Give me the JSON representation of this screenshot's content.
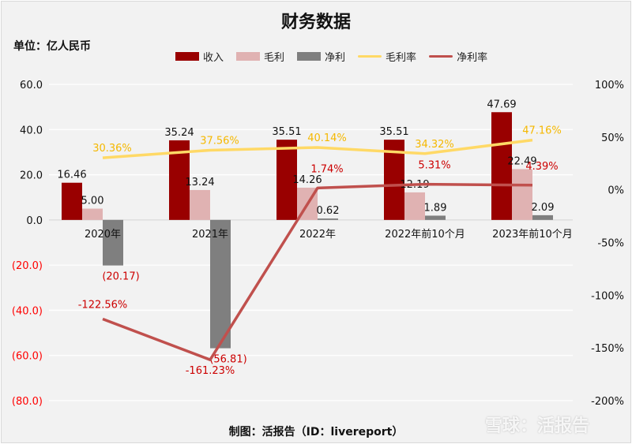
{
  "chart_data": {
    "type": "bar+line",
    "title": "财务数据",
    "unit_label": "单位：亿人民币",
    "categories": [
      "2020年",
      "2021年",
      "2022年",
      "2022年前10个月",
      "2023年前10个月"
    ],
    "bar_series": [
      {
        "name": "收入",
        "color": "#990000",
        "values": [
          16.46,
          35.24,
          35.51,
          35.51,
          47.69
        ],
        "labels": [
          "16.46",
          "35.24",
          "35.51",
          "35.51",
          "47.69"
        ]
      },
      {
        "name": "毛利",
        "color": "#e0b2b2",
        "values": [
          5.0,
          13.24,
          14.26,
          12.19,
          22.49
        ],
        "labels": [
          "5.00",
          "13.24",
          "14.26",
          "12.19",
          "22.49"
        ]
      },
      {
        "name": "净利",
        "color": "#7f7f7f",
        "values": [
          -20.17,
          -56.81,
          0.62,
          1.89,
          2.09
        ],
        "labels": [
          "(20.17)",
          "(56.81)",
          "0.62",
          "1.89",
          "2.09"
        ]
      }
    ],
    "line_series": [
      {
        "name": "毛利率",
        "color": "#ffd966",
        "label_color": "#f5b800",
        "values": [
          30.36,
          37.56,
          40.14,
          34.32,
          47.16
        ],
        "labels": [
          "30.36%",
          "37.56%",
          "40.14%",
          "34.32%",
          "47.16%"
        ]
      },
      {
        "name": "净利率",
        "color": "#c0504d",
        "label_color": "#cc0000",
        "values": [
          -122.56,
          -161.23,
          1.74,
          5.31,
          4.39
        ],
        "labels": [
          "-122.56%",
          "-161.23%",
          "1.74%",
          "5.31%",
          "4.39%"
        ]
      }
    ],
    "left_axis": {
      "ylim": [
        -80,
        60
      ],
      "ticks": [
        "60.0",
        "40.0",
        "20.0",
        "0.0",
        "(20.0)",
        "(40.0)",
        "(60.0)",
        "(80.0)"
      ],
      "tick_values": [
        60,
        40,
        20,
        0,
        -20,
        -40,
        -60,
        -80
      ],
      "negative_color": "#ff0000"
    },
    "right_axis": {
      "ylim": [
        -200,
        100
      ],
      "ticks": [
        "100%",
        "50%",
        "0%",
        "-50%",
        "-100%",
        "-150%",
        "-200%"
      ],
      "tick_values": [
        100,
        50,
        0,
        -50,
        -100,
        -150,
        -200
      ]
    },
    "grid": true,
    "legend_position": "top"
  },
  "footer": "制图：活报告（ID：livereport）",
  "watermark": "雪球：活报告"
}
